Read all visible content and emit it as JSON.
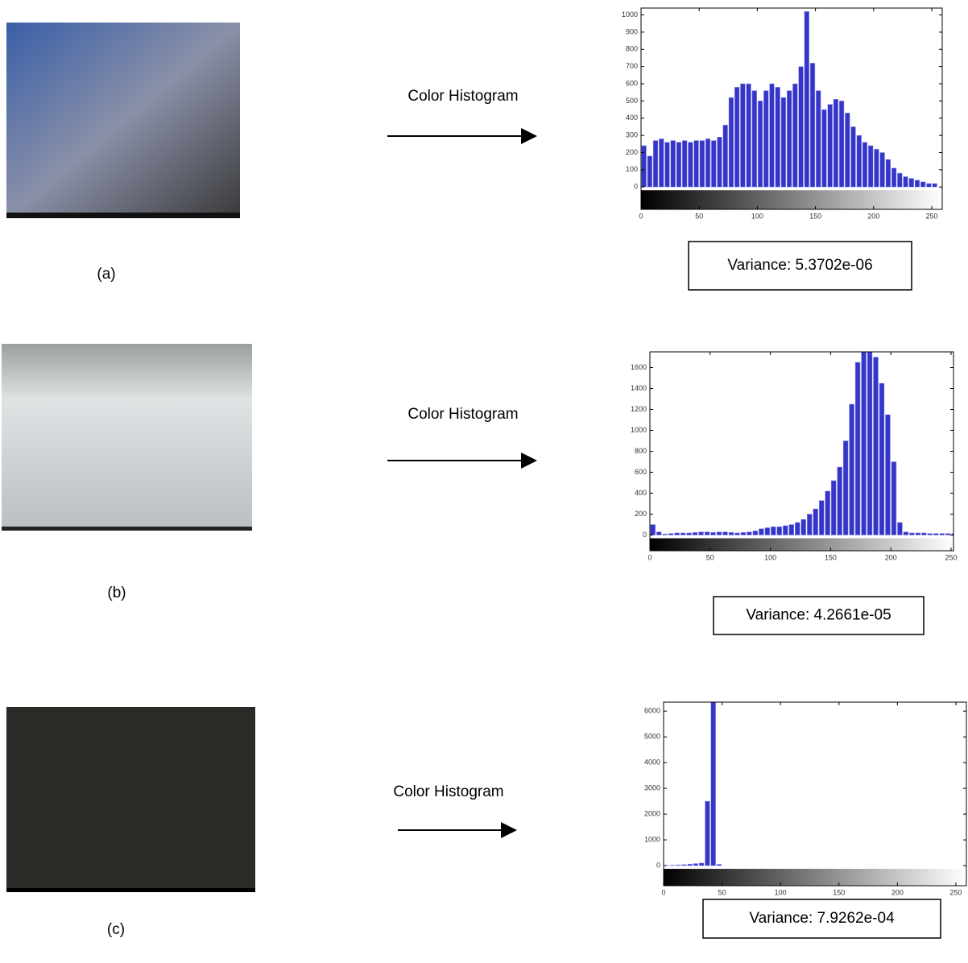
{
  "panels": [
    {
      "label": "(a)",
      "arrow_text": "Color Histogram",
      "variance": "Variance: 5.3702e-06"
    },
    {
      "label": "(b)",
      "arrow_text": "Color Histogram",
      "variance": "Variance: 4.2661e-05"
    },
    {
      "label": "(c)",
      "arrow_text": "Color Histogram",
      "variance": "Variance: 7.9262e-04"
    }
  ],
  "chart_data": [
    {
      "type": "histogram",
      "color": "#3535c8",
      "bins": [
        0,
        5,
        10,
        15,
        20,
        25,
        30,
        35,
        40,
        45,
        50,
        55,
        60,
        65,
        70,
        75,
        80,
        85,
        90,
        95,
        100,
        105,
        110,
        115,
        120,
        125,
        130,
        135,
        140,
        145,
        150,
        155,
        160,
        165,
        170,
        175,
        180,
        185,
        190,
        195,
        200,
        205,
        210,
        215,
        220,
        225,
        230,
        235,
        240,
        245,
        250,
        255
      ],
      "counts": [
        240,
        180,
        270,
        280,
        260,
        270,
        260,
        270,
        260,
        270,
        270,
        280,
        270,
        290,
        360,
        520,
        580,
        600,
        600,
        560,
        500,
        560,
        600,
        580,
        520,
        560,
        600,
        700,
        1020,
        720,
        560,
        450,
        480,
        510,
        500,
        430,
        350,
        300,
        260,
        240,
        220,
        200,
        160,
        110,
        80,
        60,
        50,
        40,
        30,
        20,
        20
      ],
      "xlim": [
        0,
        259
      ],
      "ylim": [
        -130,
        1040
      ],
      "xticks": [
        0,
        50,
        100,
        150,
        200,
        250
      ],
      "yticks": [
        0,
        100,
        200,
        300,
        400,
        500,
        600,
        700,
        800,
        900,
        1000
      ]
    },
    {
      "type": "histogram",
      "color": "#3535c8",
      "bins": [
        0,
        5,
        10,
        15,
        20,
        25,
        30,
        35,
        40,
        45,
        50,
        55,
        60,
        65,
        70,
        75,
        80,
        85,
        90,
        95,
        100,
        105,
        110,
        115,
        120,
        125,
        130,
        135,
        140,
        145,
        150,
        155,
        160,
        165,
        170,
        175,
        180,
        185,
        190,
        195,
        200,
        205,
        210,
        215,
        220,
        225,
        230,
        235,
        240,
        245,
        250,
        255
      ],
      "counts": [
        100,
        30,
        10,
        15,
        20,
        20,
        20,
        25,
        30,
        30,
        25,
        30,
        30,
        25,
        20,
        25,
        30,
        40,
        60,
        70,
        80,
        80,
        90,
        100,
        120,
        150,
        200,
        250,
        330,
        420,
        520,
        650,
        900,
        1250,
        1650,
        1750,
        1750,
        1700,
        1450,
        1150,
        700,
        120,
        30,
        20,
        20,
        20,
        15,
        15,
        15,
        15,
        15
      ],
      "xlim": [
        0,
        252
      ],
      "ylim": [
        -150,
        1750
      ],
      "xticks": [
        0,
        50,
        100,
        150,
        200,
        250
      ],
      "yticks": [
        0,
        200,
        400,
        600,
        800,
        1000,
        1200,
        1400,
        1600
      ]
    },
    {
      "type": "histogram",
      "color": "#3535c8",
      "bins": [
        0,
        5,
        10,
        15,
        20,
        25,
        30,
        35,
        40,
        45,
        50,
        55,
        60,
        65,
        70,
        75,
        80,
        85,
        90,
        95,
        100,
        105,
        110,
        115,
        120,
        125,
        130,
        135,
        140,
        145,
        150,
        155,
        160,
        165,
        170,
        175,
        180,
        185,
        190,
        195,
        200,
        205,
        210,
        215,
        220,
        225,
        230,
        235,
        240,
        245,
        250,
        255
      ],
      "counts": [
        10,
        20,
        30,
        40,
        60,
        80,
        100,
        2500,
        6350,
        50,
        0,
        0,
        0,
        0,
        0,
        0,
        0,
        0,
        0,
        0,
        0,
        0,
        0,
        0,
        0,
        0,
        0,
        0,
        0,
        0,
        0,
        0,
        0,
        0,
        0,
        0,
        0,
        0,
        0,
        0,
        0,
        0,
        0,
        0,
        0,
        0,
        0,
        0,
        0,
        0,
        0
      ],
      "xlim": [
        0,
        259
      ],
      "ylim": [
        -780,
        6350
      ],
      "xticks": [
        0,
        50,
        100,
        150,
        200,
        250
      ],
      "yticks": [
        0,
        1000,
        2000,
        3000,
        4000,
        5000,
        6000
      ]
    }
  ]
}
